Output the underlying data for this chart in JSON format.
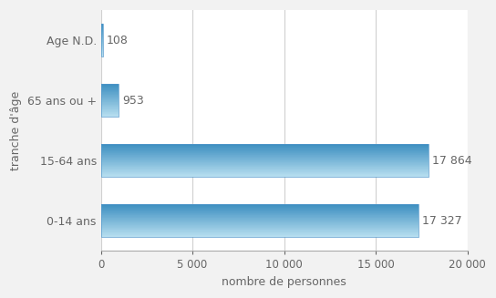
{
  "categories": [
    "0-14 ans",
    "15-64 ans",
    "65 ans ou +",
    "Age N.D."
  ],
  "values": [
    17327,
    17864,
    953,
    108
  ],
  "labels": [
    "17 327",
    "17 864",
    "953",
    "108"
  ],
  "bar_color_top": "#b8dff0",
  "bar_color_mid": "#5ab4e0",
  "bar_color_bot": "#3d8fc0",
  "xlabel": "nombre de personnes",
  "ylabel": "tranche d'âge",
  "xlim": [
    0,
    20000
  ],
  "xticks": [
    0,
    5000,
    10000,
    15000,
    20000
  ],
  "xtick_labels": [
    "0",
    "5 000",
    "10 000",
    "15 000",
    "20 000"
  ],
  "background_color": "#f2f2f2",
  "plot_bg": "#ffffff",
  "grid_color": "#d0d0d0",
  "label_fontsize": 9,
  "axis_fontsize": 9,
  "tick_fontsize": 8.5
}
